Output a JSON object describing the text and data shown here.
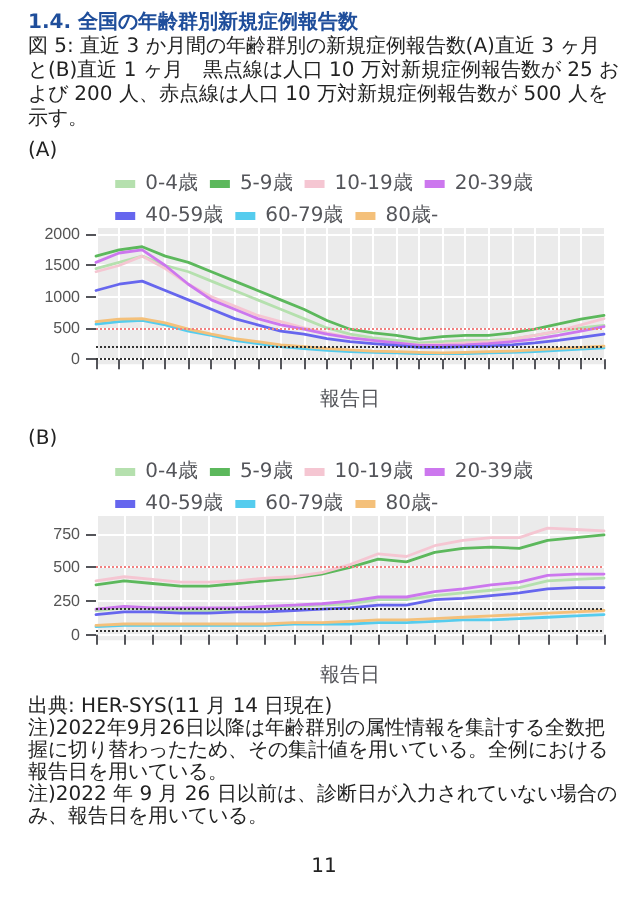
{
  "chart_data": [
    {
      "type": "other",
      "title": "1.4. 全国の年齢群別新規症例報告数",
      "subtitle": "図 5: 直近 3 か月間の年齢群別の新規症例報告数(A)直近 3 ヶ月と(B)直近 1 ヶ月　黒点線は人口 10 万対新規症例報告数が 25 および 200 人、赤点線は人口 10 万対新規症例報告数が 500 人を示す。"
    },
    {
      "type": "line",
      "title": "(A)",
      "xlabel": "報告日",
      "legend": "top",
      "grid": true,
      "marker": "none",
      "line_style": "solid",
      "ylim": [
        -80,
        2100
      ],
      "yticks": [
        0,
        500,
        1000,
        1500,
        2000
      ],
      "categories": [
        null,
        null,
        null,
        null,
        null,
        null,
        null,
        null,
        null,
        null,
        null,
        null,
        null,
        null,
        null,
        null,
        null,
        null,
        null,
        null,
        null,
        null,
        null
      ],
      "ref_lines": [
        {
          "axis": "y",
          "value": 25,
          "color": "#333333",
          "line_style": "dotted"
        },
        {
          "axis": "y",
          "value": 200,
          "color": "#333333",
          "line_style": "dotted"
        },
        {
          "axis": "y",
          "value": 500,
          "color": "#f08080",
          "line_style": "dotted"
        }
      ],
      "series": [
        {
          "name": "0-4歳",
          "color": "#b5e0ae",
          "values": [
            1450,
            1550,
            1650,
            1500,
            1400,
            1250,
            1100,
            950,
            800,
            650,
            500,
            400,
            340,
            300,
            260,
            280,
            300,
            300,
            320,
            380,
            440,
            500,
            540
          ]
        },
        {
          "name": "5-9歳",
          "color": "#5cb85c",
          "values": [
            1650,
            1750,
            1800,
            1650,
            1550,
            1400,
            1250,
            1100,
            950,
            800,
            620,
            480,
            420,
            380,
            320,
            360,
            380,
            380,
            420,
            480,
            560,
            640,
            700
          ]
        },
        {
          "name": "10-19歳",
          "color": "#f5c6d2",
          "values": [
            1400,
            1500,
            1650,
            1450,
            1200,
            1000,
            850,
            700,
            600,
            500,
            420,
            350,
            300,
            260,
            230,
            240,
            260,
            280,
            320,
            380,
            450,
            550,
            650
          ]
        },
        {
          "name": "20-39歳",
          "color": "#cc77ee",
          "values": [
            1550,
            1700,
            1750,
            1500,
            1200,
            950,
            800,
            650,
            550,
            480,
            400,
            340,
            300,
            260,
            220,
            220,
            230,
            250,
            280,
            320,
            380,
            450,
            520
          ]
        },
        {
          "name": "40-59歳",
          "color": "#6666ee",
          "values": [
            1100,
            1200,
            1250,
            1100,
            950,
            800,
            650,
            550,
            450,
            400,
            330,
            280,
            250,
            220,
            190,
            190,
            200,
            210,
            230,
            260,
            300,
            350,
            400
          ]
        },
        {
          "name": "60-79歳",
          "color": "#55ccee",
          "values": [
            560,
            600,
            620,
            550,
            450,
            380,
            300,
            250,
            200,
            170,
            140,
            120,
            110,
            100,
            90,
            90,
            90,
            100,
            110,
            120,
            140,
            160,
            180
          ]
        },
        {
          "name": "80歳-",
          "color": "#f4c07a",
          "values": [
            600,
            640,
            650,
            580,
            480,
            400,
            330,
            280,
            230,
            200,
            170,
            150,
            130,
            120,
            110,
            100,
            110,
            120,
            130,
            150,
            170,
            190,
            210
          ]
        }
      ]
    },
    {
      "type": "line",
      "title": "(B)",
      "xlabel": "報告日",
      "legend": "top",
      "grid": true,
      "marker": "none",
      "line_style": "solid",
      "ylim": [
        -40,
        880
      ],
      "yticks": [
        0,
        250,
        500,
        750
      ],
      "categories": [
        null,
        null,
        null,
        null,
        null,
        null,
        null,
        null,
        null,
        null,
        null,
        null,
        null,
        null,
        null,
        null,
        null,
        null,
        null
      ],
      "ref_lines": [
        {
          "axis": "y",
          "value": 25,
          "color": "#333333",
          "line_style": "dotted"
        },
        {
          "axis": "y",
          "value": 200,
          "color": "#333333",
          "line_style": "dotted"
        },
        {
          "axis": "y",
          "value": 500,
          "color": "#f08080",
          "line_style": "dotted"
        }
      ],
      "series": [
        {
          "name": "0-4歳",
          "color": "#b5e0ae",
          "values": [
            180,
            200,
            190,
            180,
            180,
            190,
            200,
            210,
            220,
            230,
            260,
            260,
            290,
            310,
            330,
            350,
            400,
            410,
            420
          ]
        },
        {
          "name": "5-9歳",
          "color": "#5cb85c",
          "values": [
            370,
            400,
            380,
            360,
            360,
            380,
            400,
            420,
            450,
            500,
            560,
            540,
            610,
            640,
            650,
            640,
            700,
            720,
            740
          ]
        },
        {
          "name": "10-19歳",
          "color": "#f5c6d2",
          "values": [
            400,
            430,
            410,
            390,
            390,
            400,
            420,
            430,
            460,
            520,
            600,
            580,
            660,
            700,
            720,
            720,
            790,
            780,
            770
          ]
        },
        {
          "name": "20-39歳",
          "color": "#cc77ee",
          "values": [
            190,
            210,
            200,
            200,
            200,
            200,
            210,
            220,
            230,
            250,
            280,
            280,
            320,
            340,
            370,
            390,
            440,
            450,
            450
          ]
        },
        {
          "name": "40-59歳",
          "color": "#6666ee",
          "values": [
            150,
            170,
            170,
            160,
            160,
            170,
            170,
            180,
            190,
            200,
            220,
            220,
            260,
            270,
            290,
            310,
            340,
            350,
            350
          ]
        },
        {
          "name": "60-79歳",
          "color": "#55ccee",
          "values": [
            60,
            70,
            70,
            70,
            70,
            70,
            70,
            80,
            80,
            80,
            90,
            90,
            100,
            110,
            110,
            120,
            130,
            140,
            150
          ]
        },
        {
          "name": "80歳-",
          "color": "#f4c07a",
          "values": [
            70,
            80,
            80,
            80,
            80,
            80,
            80,
            90,
            90,
            100,
            110,
            110,
            120,
            130,
            140,
            150,
            160,
            170,
            180
          ]
        }
      ],
      "annotations": [
        "出典: HER-SYS(11 月 14 日現在)",
        "注)2022年9月26日以降は年齢群別の属性情報を集計する全数把握に切り替わったため、その集計値を用いている。全例における報告日を用いている。",
        "注)2022 年 9 月 26 日以前は、診断日が入力されていない場合のみ、報告日を用いている。",
        "11"
      ]
    }
  ]
}
